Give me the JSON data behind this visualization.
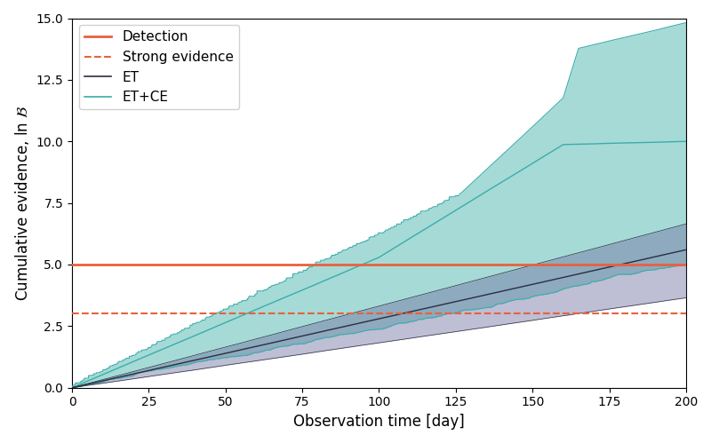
{
  "xlabel": "Observation time [day]",
  "ylabel": "Cumulative evidence, ln $\\mathcal{B}$",
  "xlim": [
    0,
    200
  ],
  "ylim": [
    0,
    15.0
  ],
  "yticks": [
    0.0,
    2.5,
    5.0,
    7.5,
    10.0,
    12.5,
    15.0
  ],
  "xticks": [
    0,
    25,
    50,
    75,
    100,
    125,
    150,
    175,
    200
  ],
  "detection_level": 5.0,
  "strong_evidence_level": 3.0,
  "detection_color": "#E8613C",
  "strong_evidence_color": "#E8613C",
  "et_color": "#2d2d3f",
  "et_fill_color": "#7070a0",
  "etce_color": "#3aada8",
  "etce_fill_color": "#3aada8",
  "et_fill_alpha": 0.45,
  "etce_fill_alpha": 0.45,
  "legend_loc": "upper left",
  "figsize": [
    8.0,
    4.99
  ],
  "dpi": 100,
  "seed": 42
}
